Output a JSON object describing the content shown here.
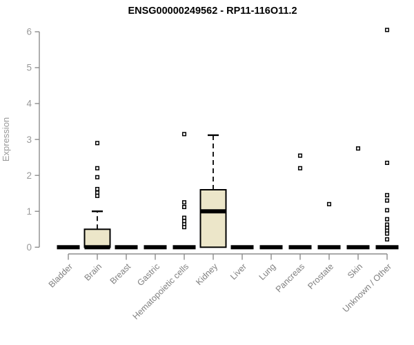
{
  "chart_data": {
    "type": "box",
    "title": "ENSG00000249562 - RP11-116O11.2",
    "ylabel": "Expression",
    "xlabel": "",
    "ylim": [
      0,
      6
    ],
    "yticks": [
      0,
      1,
      2,
      3,
      4,
      5,
      6
    ],
    "grid": false,
    "legend": null,
    "categories": [
      "Bladder",
      "Brain",
      "Breast",
      "Gastric",
      "Hematopoietic cells",
      "Kidney",
      "Liver",
      "Lung",
      "Pancreas",
      "Prostate",
      "Skin",
      "Unknown / Other"
    ],
    "series": [
      {
        "name": "Bladder",
        "q1": 0,
        "median": 0,
        "q3": 0,
        "whisker_low": 0,
        "whisker_high": 0,
        "outliers": []
      },
      {
        "name": "Brain",
        "q1": 0,
        "median": 0,
        "q3": 0.5,
        "whisker_low": 0,
        "whisker_high": 1.0,
        "outliers": [
          2.9,
          2.2,
          1.95,
          1.62,
          1.52,
          1.43
        ]
      },
      {
        "name": "Breast",
        "q1": 0,
        "median": 0,
        "q3": 0,
        "whisker_low": 0,
        "whisker_high": 0,
        "outliers": []
      },
      {
        "name": "Gastric",
        "q1": 0,
        "median": 0,
        "q3": 0,
        "whisker_low": 0,
        "whisker_high": 0,
        "outliers": []
      },
      {
        "name": "Hematopoietic cells",
        "q1": 0,
        "median": 0,
        "q3": 0,
        "whisker_low": 0,
        "whisker_high": 0,
        "outliers": [
          3.15,
          1.25,
          1.12,
          0.82,
          0.73,
          0.64,
          0.56
        ]
      },
      {
        "name": "Kidney",
        "q1": 0,
        "median": 1.0,
        "q3": 1.6,
        "whisker_low": 0,
        "whisker_high": 3.12,
        "outliers": []
      },
      {
        "name": "Liver",
        "q1": 0,
        "median": 0,
        "q3": 0,
        "whisker_low": 0,
        "whisker_high": 0,
        "outliers": []
      },
      {
        "name": "Lung",
        "q1": 0,
        "median": 0,
        "q3": 0,
        "whisker_low": 0,
        "whisker_high": 0,
        "outliers": []
      },
      {
        "name": "Pancreas",
        "q1": 0,
        "median": 0,
        "q3": 0,
        "whisker_low": 0,
        "whisker_high": 0,
        "outliers": [
          2.55,
          2.2
        ]
      },
      {
        "name": "Prostate",
        "q1": 0,
        "median": 0,
        "q3": 0,
        "whisker_low": 0,
        "whisker_high": 0,
        "outliers": [
          1.2
        ]
      },
      {
        "name": "Skin",
        "q1": 0,
        "median": 0,
        "q3": 0,
        "whisker_low": 0,
        "whisker_high": 0,
        "outliers": [
          2.75
        ]
      },
      {
        "name": "Unknown / Other",
        "q1": 0,
        "median": 0,
        "q3": 0,
        "whisker_low": 0,
        "whisker_high": 0,
        "outliers": [
          6.05,
          2.35,
          1.45,
          1.3,
          1.03,
          0.78,
          0.63,
          0.54,
          0.46,
          0.38,
          0.22
        ]
      }
    ],
    "colors": {
      "box_fill": "#ECE6C9",
      "box_stroke": "#000000",
      "median": "#000000",
      "outlier_stroke": "#000000",
      "outlier_fill": "#FFFFFF",
      "axis": "#8C8C8C",
      "tick_label": "#999999",
      "category_label": "#808080",
      "title": "#000000",
      "background": "#FFFFFF"
    }
  }
}
